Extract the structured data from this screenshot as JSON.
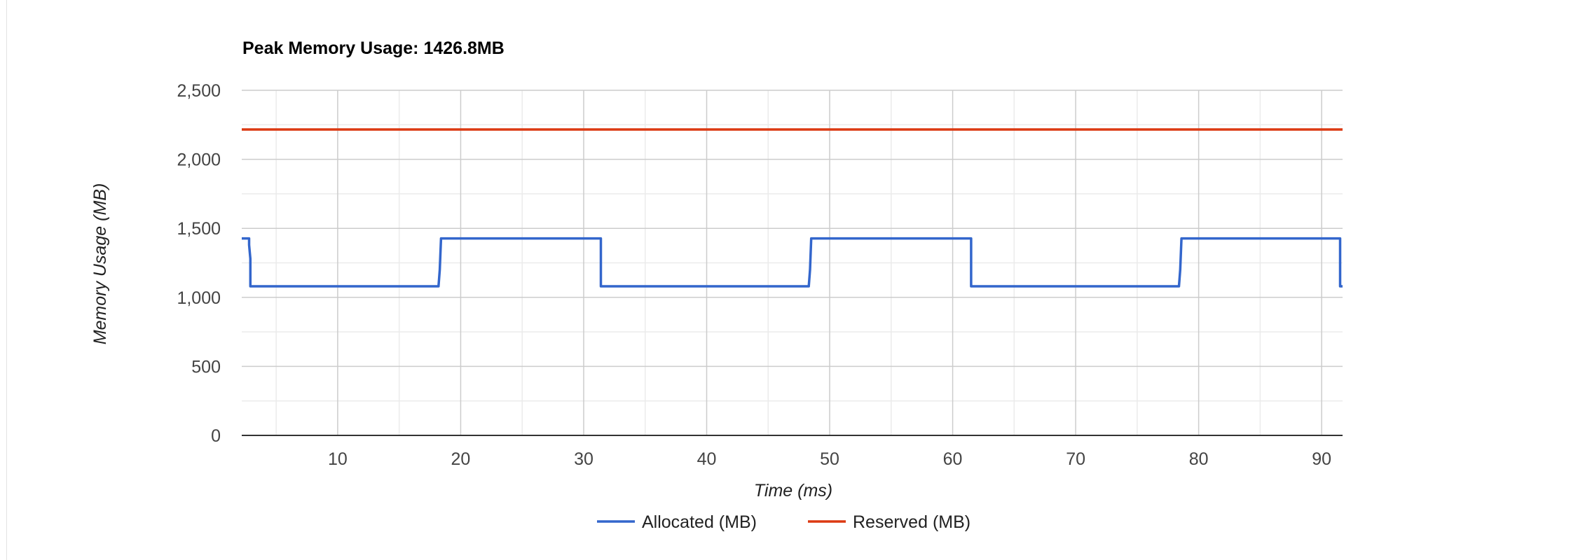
{
  "chart_data": {
    "type": "line",
    "title": "Peak Memory Usage: 1426.8MB",
    "xlabel": "Time (ms)",
    "ylabel": "Memory Usage (MB)",
    "xlim": [
      2.2,
      91.7
    ],
    "ylim": [
      0,
      2500
    ],
    "x_ticks": [
      10,
      20,
      30,
      40,
      50,
      60,
      70,
      80,
      90
    ],
    "x_tick_labels": [
      "10",
      "20",
      "30",
      "40",
      "50",
      "60",
      "70",
      "80",
      "90"
    ],
    "y_ticks": [
      0,
      500,
      1000,
      1500,
      2000,
      2500
    ],
    "y_tick_labels": [
      "0",
      "500",
      "1,000",
      "1,500",
      "2,000",
      "2,500"
    ],
    "grid": true,
    "legend_position": "bottom",
    "colors": {
      "allocated": "#3366cc",
      "reserved": "#dc3912"
    },
    "series": [
      {
        "name": "Allocated (MB)",
        "color": "#3366cc",
        "points": [
          [
            2.2,
            1426.8
          ],
          [
            2.8,
            1426.8
          ],
          [
            2.8,
            1380
          ],
          [
            2.9,
            1280
          ],
          [
            2.9,
            1080
          ],
          [
            18.2,
            1080
          ],
          [
            18.3,
            1200
          ],
          [
            18.4,
            1426.8
          ],
          [
            31.4,
            1426.8
          ],
          [
            31.4,
            1080
          ],
          [
            48.3,
            1080
          ],
          [
            48.4,
            1200
          ],
          [
            48.5,
            1426.8
          ],
          [
            61.5,
            1426.8
          ],
          [
            61.5,
            1080
          ],
          [
            78.4,
            1080
          ],
          [
            78.5,
            1200
          ],
          [
            78.6,
            1426.8
          ],
          [
            91.5,
            1426.8
          ],
          [
            91.5,
            1080
          ],
          [
            91.7,
            1080
          ]
        ]
      },
      {
        "name": "Reserved (MB)",
        "color": "#dc3912",
        "points": [
          [
            2.2,
            2216
          ],
          [
            91.7,
            2216
          ]
        ]
      }
    ]
  }
}
